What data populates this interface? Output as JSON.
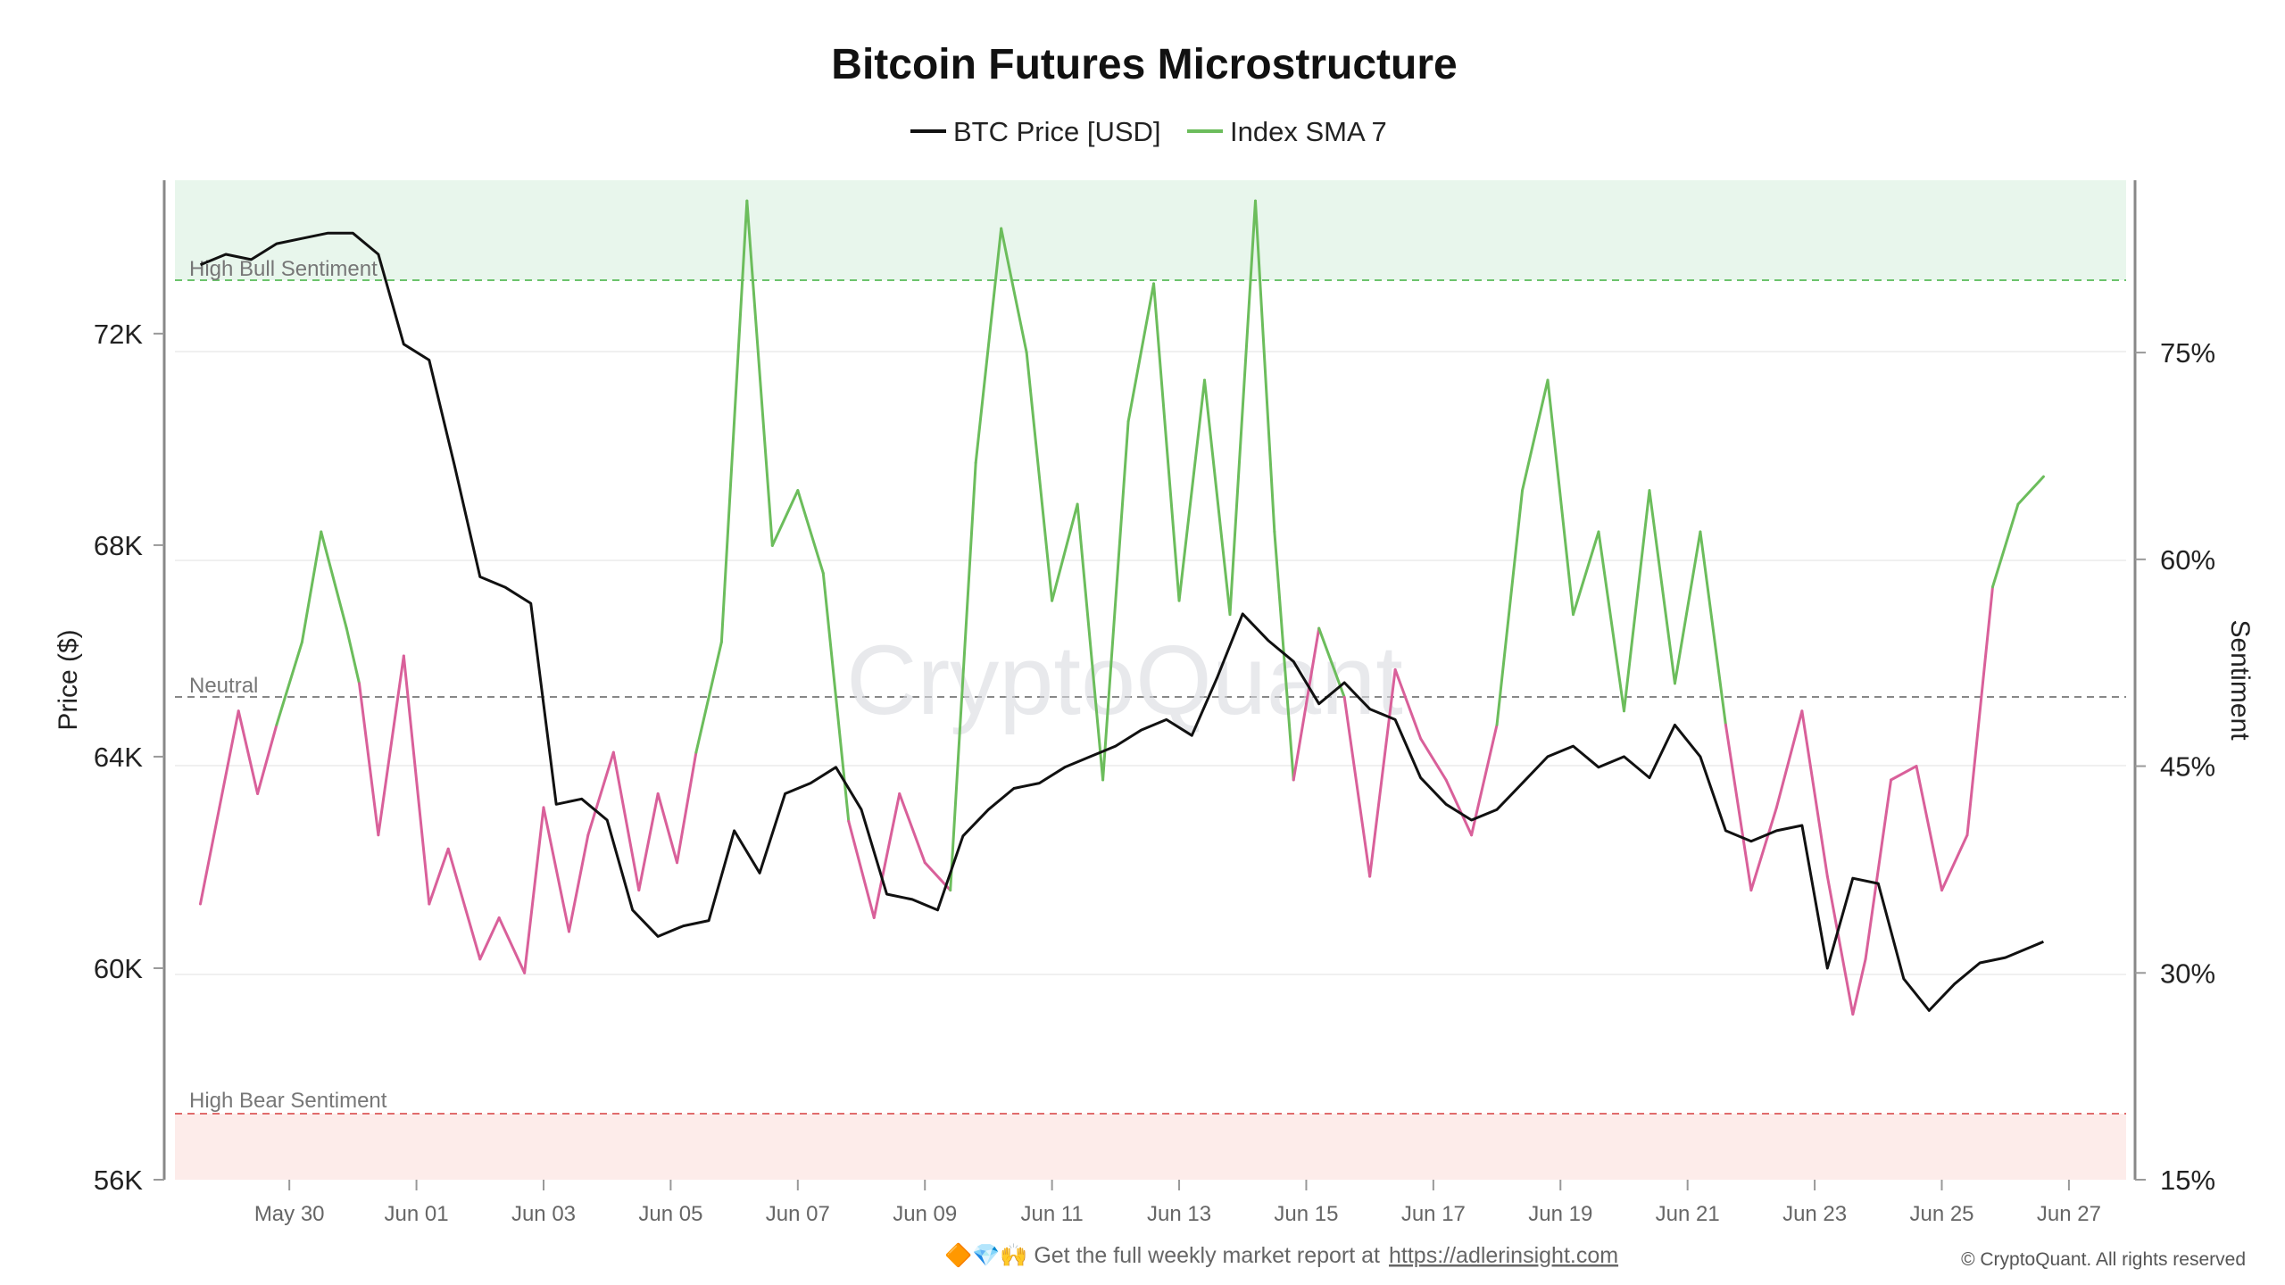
{
  "chart_data": {
    "type": "line",
    "title": "Bitcoin Futures Microstructure",
    "legend": [
      "BTC Price [USD]",
      "Index SMA 7"
    ],
    "x_ticks": [
      "May 30",
      "Jun 01",
      "Jun 03",
      "Jun 05",
      "Jun 07",
      "Jun 09",
      "Jun 11",
      "Jun 13",
      "Jun 15",
      "Jun 17",
      "Jun 19",
      "Jun 21",
      "Jun 23",
      "Jun 25",
      "Jun 27"
    ],
    "y_left": {
      "label": "Price ($)",
      "ticks": [
        "56K",
        "60K",
        "64K",
        "68K",
        "72K"
      ],
      "values": [
        56000,
        60000,
        64000,
        68000,
        72000
      ],
      "ylim": [
        56000,
        74900
      ]
    },
    "y_right": {
      "label": "Sentiment",
      "ticks": [
        "15%",
        "30%",
        "45%",
        "60%",
        "75%"
      ],
      "values": [
        15,
        30,
        45,
        60,
        75
      ],
      "ylim": [
        15,
        87.5
      ]
    },
    "bands": [
      {
        "label": "High Bull Sentiment",
        "value": 80,
        "color": "#6cc36c",
        "fill": "#e8f6ec"
      },
      {
        "label": "Neutral",
        "value": 50,
        "color": "#888888"
      },
      {
        "label": "High Bear Sentiment",
        "value": 20,
        "color": "#e06c6c",
        "fill": "#fdecea"
      }
    ],
    "colors": {
      "price": "#111111",
      "sentiment_bull": "#6cbd5c",
      "sentiment_bear": "#d9609a"
    },
    "x_range_days": [
      -1.8,
      28.9
    ],
    "series": [
      {
        "name": "BTC Price [USD]",
        "x": [
          -1.4,
          -1.0,
          -0.6,
          -0.2,
          0.2,
          0.6,
          1.0,
          1.4,
          1.8,
          2.2,
          2.6,
          3.0,
          3.4,
          3.8,
          4.2,
          4.6,
          5.0,
          5.4,
          5.8,
          6.2,
          6.6,
          7.0,
          7.4,
          7.8,
          8.2,
          8.6,
          9.0,
          9.4,
          9.8,
          10.2,
          10.6,
          11.0,
          11.4,
          11.8,
          12.2,
          12.6,
          13.0,
          13.4,
          13.8,
          14.2,
          14.6,
          15.0,
          15.4,
          15.8,
          16.2,
          16.6,
          17.0,
          17.4,
          17.8,
          18.2,
          18.6,
          19.0,
          19.4,
          19.8,
          20.2,
          20.6,
          21.0,
          21.4,
          21.8,
          22.2,
          22.6,
          23.0,
          23.4,
          23.8,
          24.2,
          24.6,
          25.0,
          25.4,
          25.8,
          26.2,
          26.6,
          27.0,
          27.4,
          27.6
        ],
        "y": [
          73300,
          73500,
          73400,
          73700,
          73800,
          73900,
          73900,
          73500,
          71800,
          71500,
          69500,
          67400,
          67200,
          66900,
          63100,
          63200,
          62800,
          61100,
          60600,
          60800,
          60900,
          62600,
          61800,
          63300,
          63500,
          63800,
          63000,
          61400,
          61300,
          61100,
          62500,
          63000,
          63400,
          63500,
          63800,
          64000,
          64200,
          64500,
          64700,
          64400,
          65500,
          66700,
          66200,
          65800,
          65000,
          65400,
          64900,
          64700,
          63600,
          63100,
          62800,
          63000,
          63500,
          64000,
          64200,
          63800,
          64000,
          63600,
          64600,
          64000,
          62600,
          62400,
          62600,
          62700,
          60000,
          61700,
          61600,
          59800,
          59200,
          59700,
          60100,
          60200,
          60400,
          60500
        ]
      },
      {
        "name": "Index SMA 7",
        "x": [
          -1.4,
          -1.1,
          -0.8,
          -0.5,
          -0.2,
          0.2,
          0.5,
          0.9,
          1.1,
          1.4,
          1.8,
          2.2,
          2.5,
          3.0,
          3.3,
          3.7,
          4.0,
          4.4,
          4.7,
          5.1,
          5.5,
          5.8,
          6.1,
          6.4,
          6.8,
          7.2,
          7.6,
          8.0,
          8.4,
          8.8,
          9.2,
          9.6,
          10.0,
          10.4,
          10.8,
          11.2,
          11.6,
          12.0,
          12.4,
          12.8,
          13.2,
          13.6,
          14.0,
          14.4,
          14.8,
          15.2,
          15.5,
          15.8,
          16.2,
          16.6,
          17.0,
          17.4,
          17.8,
          18.2,
          18.6,
          19.0,
          19.4,
          19.8,
          20.2,
          20.6,
          21.0,
          21.4,
          21.8,
          22.2,
          22.6,
          23.0,
          23.4,
          23.8,
          24.2,
          24.6,
          24.8,
          25.2,
          25.6,
          26.0,
          26.4,
          26.8,
          27.2,
          27.6
        ],
        "y": [
          35,
          42,
          49,
          43,
          48,
          54,
          62,
          55,
          51,
          40,
          53,
          35,
          39,
          31,
          34,
          30,
          42,
          33,
          40,
          46,
          36,
          43,
          38,
          46,
          54,
          86,
          61,
          65,
          59,
          41,
          34,
          43,
          38,
          36,
          67,
          84,
          75,
          57,
          64,
          44,
          70,
          80,
          57,
          73,
          56,
          86,
          62,
          44,
          55,
          50,
          37,
          52,
          47,
          44,
          40,
          48,
          65,
          73,
          56,
          62,
          49,
          65,
          51,
          62,
          48,
          36,
          42,
          49,
          37,
          27,
          31,
          44,
          45,
          36,
          40,
          58,
          64,
          66
        ]
      }
    ],
    "annotations": [
      "CryptoQuant"
    ]
  },
  "footer": {
    "icons": "🔶💎🙌",
    "text": "Get the full weekly market report at",
    "link": "https://adlerinsight.com"
  },
  "copyright": "© CryptoQuant. All rights reserved"
}
